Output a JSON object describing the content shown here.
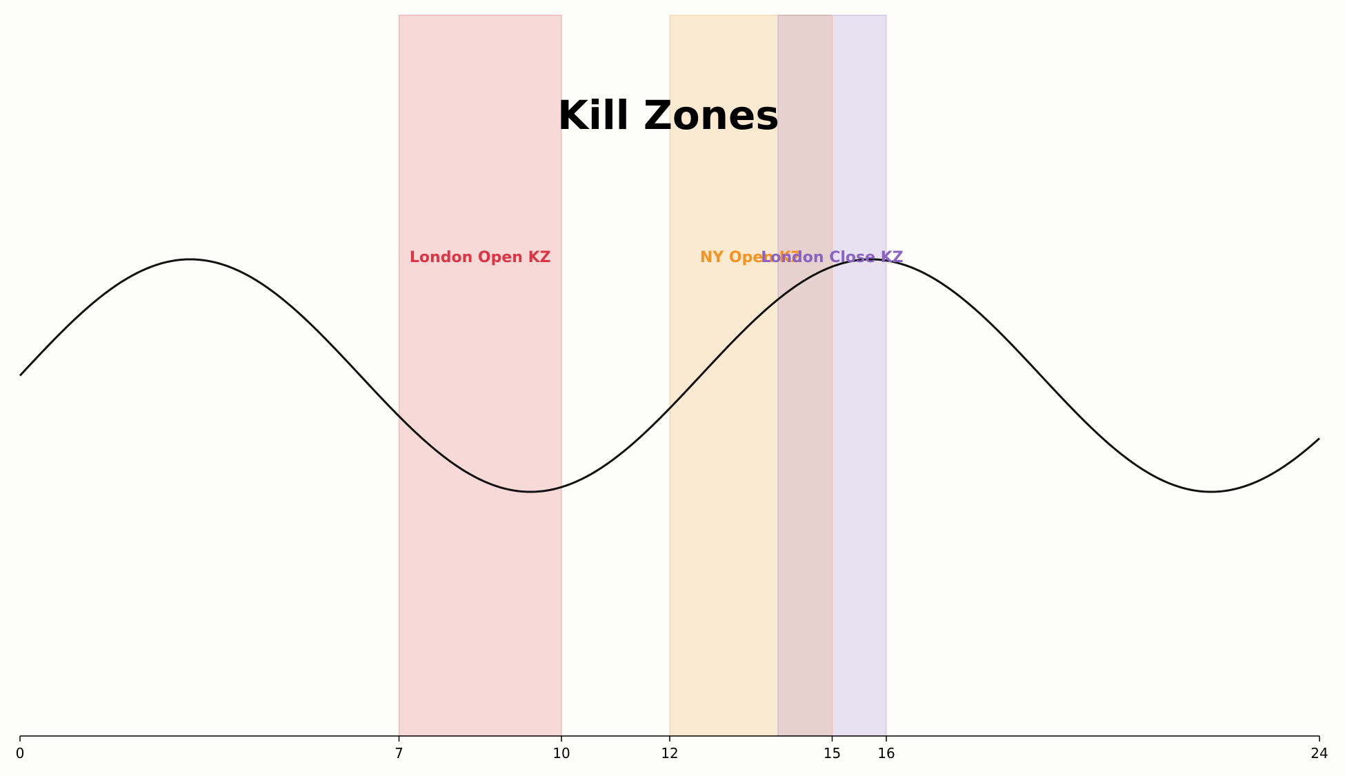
{
  "chart_data": {
    "type": "area",
    "title": "Kill Zones",
    "xlabel": "",
    "ylabel": "",
    "xlim": [
      0,
      24
    ],
    "ylim": [
      -1.55,
      1.55
    ],
    "xticks": [
      0,
      7,
      10,
      12,
      15,
      16,
      24
    ],
    "grid": false,
    "legend": "none",
    "curve": {
      "function": "sine",
      "amplitude": 0.5,
      "period_hours": 12.57,
      "x": [
        0,
        1,
        2,
        3,
        3.14,
        4,
        5,
        6,
        7,
        8,
        9,
        9.42,
        10,
        11,
        12,
        13,
        14,
        15,
        15.71,
        16,
        17,
        18,
        19,
        20,
        21,
        22,
        22,
        23,
        24
      ],
      "y": [
        0,
        0.24,
        0.45,
        0.5,
        0.5,
        0.45,
        0.33,
        0.17,
        -0.1,
        -0.34,
        -0.48,
        -0.5,
        -0.48,
        -0.34,
        -0.12,
        0.13,
        0.34,
        0.47,
        0.5,
        0.5,
        0.42,
        0.25,
        0.05,
        -0.17,
        -0.38,
        -0.5,
        -0.5,
        -0.49,
        -0.36
      ]
    },
    "zones": [
      {
        "label": "London Open KZ",
        "start": 7,
        "end": 10,
        "color": "#dc3545"
      },
      {
        "label": "NY Open KZ",
        "start": 12,
        "end": 15,
        "color": "#f39322"
      },
      {
        "label": "London Close KZ",
        "start": 14,
        "end": 16,
        "color": "#8a63c4"
      }
    ]
  }
}
